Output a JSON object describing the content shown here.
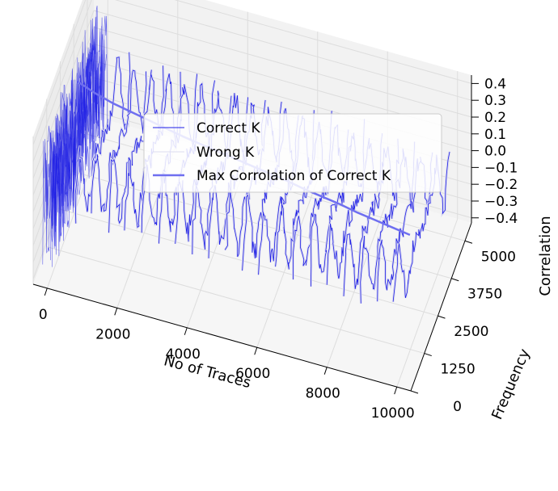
{
  "chart_data": {
    "type": "line",
    "projection": "3d",
    "x_axis": {
      "label": "No of Traces",
      "ticks": [
        0,
        2000,
        4000,
        6000,
        8000,
        10000
      ],
      "range": [
        -400,
        10400
      ]
    },
    "y_axis": {
      "label": "Frequency",
      "ticks": [
        0,
        1250,
        2500,
        3750,
        5000
      ],
      "range": [
        0,
        5600
      ]
    },
    "z_axis": {
      "label": "Correlation",
      "ticks": [
        -0.4,
        -0.3,
        -0.2,
        -0.1,
        0.0,
        0.1,
        0.2,
        0.3,
        0.4
      ],
      "tick_labels": [
        "−0.4",
        "−0.3",
        "−0.2",
        "−0.1",
        "0.0",
        "0.1",
        "0.2",
        "0.3",
        "0.4"
      ],
      "range": [
        -0.43,
        0.45
      ]
    },
    "grid": true,
    "legend": {
      "placement": "upper-center",
      "entries": [
        "Correct K",
        "Wrong K",
        "Max Corrolation of Correct K"
      ]
    },
    "colors": {
      "correct": "#1f1fe6",
      "wrong": "#dcdcf0",
      "max": "#6f6ff0",
      "pane": "#f2f2f2",
      "grid": "#dddddd"
    },
    "series": [
      {
        "name": "Max Corrolation of Correct K",
        "x": [
          100,
          600,
          1100,
          1600,
          2100,
          2600,
          3100,
          3600,
          4100,
          4600,
          5100,
          5600,
          6100,
          6600,
          7100,
          7600,
          8100,
          8600,
          9100,
          9600
        ],
        "y": [
          2500,
          2500,
          2500,
          2500,
          2500,
          2500,
          2500,
          2500,
          2500,
          2500,
          2500,
          2500,
          2500,
          2500,
          2500,
          2500,
          2500,
          2500,
          2500,
          2500
        ],
        "z": [
          0.36,
          0.32,
          0.29,
          0.27,
          0.25,
          0.23,
          0.21,
          0.195,
          0.18,
          0.165,
          0.15,
          0.135,
          0.12,
          0.1,
          0.085,
          0.07,
          0.05,
          0.035,
          0.02,
          0.005
        ]
      }
    ]
  }
}
